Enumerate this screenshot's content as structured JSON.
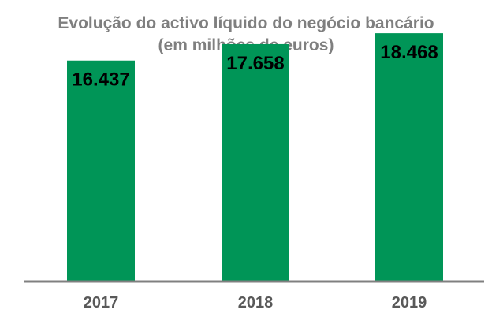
{
  "colors": {
    "bar": "#009557",
    "axis": "#808080",
    "title": "#7f7f7f",
    "tick": "#595959",
    "value_label": "#000000"
  },
  "chart_data": {
    "type": "bar",
    "title": "Evolução do activo líquido do negócio bancário",
    "subtitle": "(em milhões de euros)",
    "categories": [
      "2017",
      "2018",
      "2019"
    ],
    "value_labels": [
      "16.437",
      "17.658",
      "18.468"
    ],
    "values": [
      16437,
      17658,
      18468
    ],
    "xlabel": "",
    "ylabel": "",
    "ylim": [
      0,
      20000
    ],
    "grid": false,
    "legend": "none"
  }
}
